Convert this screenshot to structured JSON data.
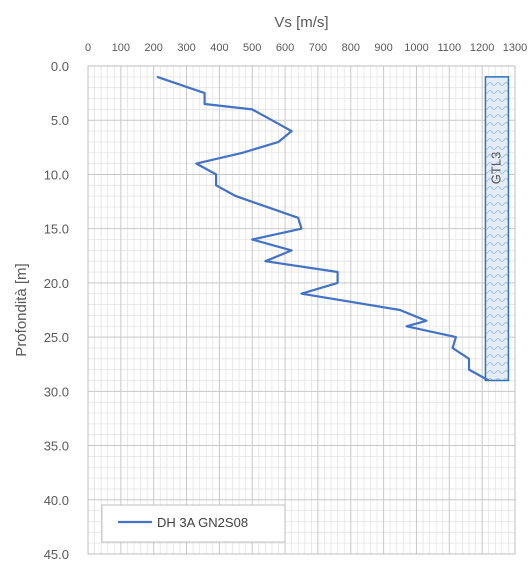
{
  "chart_data": {
    "type": "line",
    "xlabel": "Vs [m/s]",
    "ylabel": "Profondità [m]",
    "xlim": [
      0,
      1300
    ],
    "ylim": [
      0,
      45
    ],
    "x_ticks": [
      "0",
      "100",
      "200",
      "300",
      "400",
      "500",
      "600",
      "700",
      "800",
      "900",
      "1000",
      "1100",
      "1200",
      "1300"
    ],
    "y_ticks": [
      "0.0",
      "5.0",
      "10.0",
      "15.0",
      "20.0",
      "25.0",
      "30.0",
      "35.0",
      "40.0",
      "45.0"
    ],
    "x_axis_position": "top",
    "y_axis_inverted": true,
    "grid": true,
    "minor_grid": true,
    "legend_position": "bottom-left",
    "series": [
      {
        "name": "DH 3A GN2S08",
        "color": "#4472c4",
        "points": [
          [
            210,
            1.0
          ],
          [
            355,
            2.5
          ],
          [
            355,
            3.5
          ],
          [
            500,
            4.0
          ],
          [
            560,
            5.0
          ],
          [
            620,
            6.0
          ],
          [
            580,
            7.0
          ],
          [
            470,
            8.0
          ],
          [
            330,
            9.0
          ],
          [
            390,
            10.0
          ],
          [
            390,
            11.0
          ],
          [
            450,
            12.0
          ],
          [
            640,
            14.0
          ],
          [
            650,
            15.0
          ],
          [
            500,
            16.0
          ],
          [
            620,
            17.0
          ],
          [
            540,
            18.0
          ],
          [
            760,
            19.0
          ],
          [
            760,
            20.0
          ],
          [
            650,
            21.0
          ],
          [
            950,
            22.5
          ],
          [
            1030,
            23.5
          ],
          [
            970,
            24.0
          ],
          [
            1120,
            25.0
          ],
          [
            1110,
            26.0
          ],
          [
            1160,
            27.0
          ],
          [
            1160,
            28.0
          ],
          [
            1220,
            29.0
          ]
        ]
      }
    ],
    "annotations": [
      {
        "label": "GTL3",
        "x_range": [
          1210,
          1280
        ],
        "y_range": [
          1.0,
          29.0
        ],
        "fill": "#dce6f1",
        "border": "#2e75b6",
        "text_orientation": "vertical"
      }
    ]
  }
}
